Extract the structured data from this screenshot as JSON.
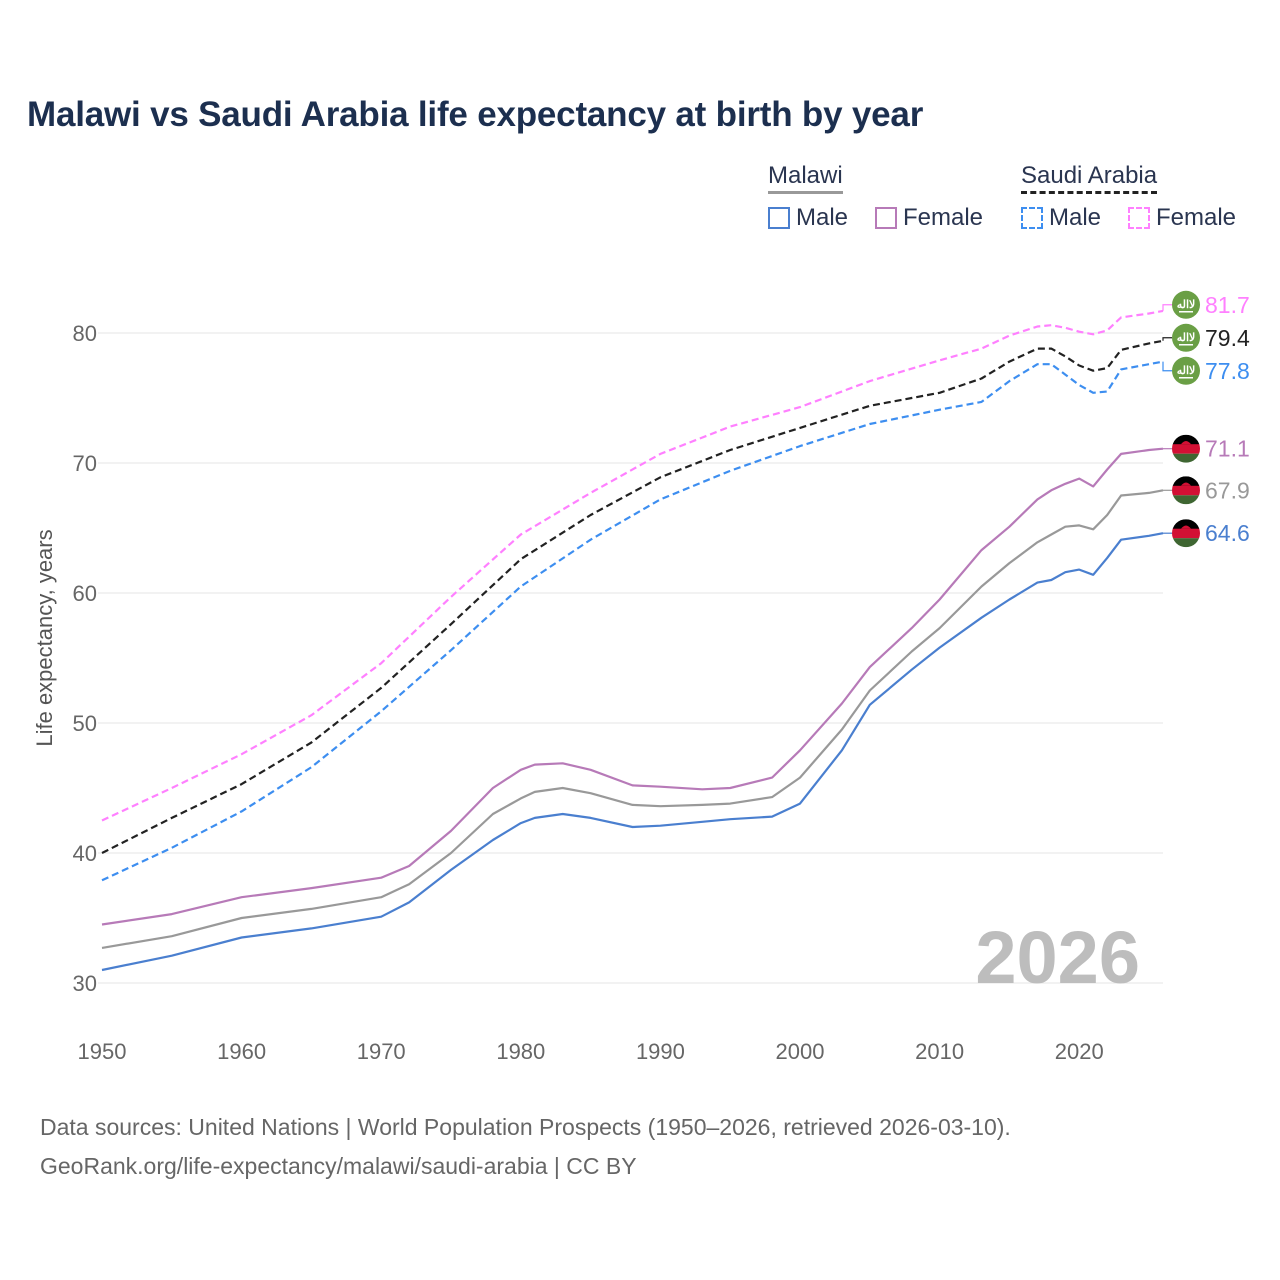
{
  "title": "Malawi vs Saudi Arabia life expectancy at birth by year",
  "legend": {
    "groups": [
      {
        "name": "Malawi",
        "items": [
          "Male",
          "Female"
        ]
      },
      {
        "name": "Saudi Arabia",
        "items": [
          "Male",
          "Female"
        ]
      }
    ]
  },
  "source": {
    "line1": "Data sources: United Nations | World Population Prospects (1950–2026, retrieved 2026-03-10).",
    "line2": "GeoRank.org/life-expectancy/malawi/saudi-arabia | CC BY"
  },
  "chart_data": {
    "type": "line",
    "title": "Malawi vs Saudi Arabia life expectancy at birth by year",
    "xlabel": "",
    "ylabel": "Life expectancy, years",
    "xlim": [
      1950,
      2026
    ],
    "ylim": [
      30,
      83
    ],
    "xticks": [
      1950,
      1960,
      1970,
      1980,
      1990,
      2000,
      2010,
      2020
    ],
    "yticks": [
      30,
      40,
      50,
      60,
      70,
      80
    ],
    "grid": true,
    "year_watermark": "2026",
    "series": [
      {
        "name": "Saudi Arabia Female",
        "country": "Saudi Arabia",
        "color": "#ff80ff",
        "dashed": true,
        "end_label": "81.7",
        "x": [
          1950,
          1955,
          1960,
          1965,
          1970,
          1975,
          1980,
          1985,
          1990,
          1995,
          2000,
          2005,
          2010,
          2013,
          2015,
          2017,
          2018,
          2019,
          2020,
          2021,
          2022,
          2023,
          2025,
          2026
        ],
        "y": [
          42.5,
          45.0,
          47.6,
          50.6,
          54.6,
          59.7,
          64.5,
          67.7,
          70.7,
          72.8,
          74.3,
          76.3,
          77.9,
          78.8,
          79.8,
          80.5,
          80.6,
          80.4,
          80.1,
          79.9,
          80.2,
          81.2,
          81.5,
          81.7
        ]
      },
      {
        "name": "Saudi Arabia",
        "country": "Saudi Arabia",
        "color": "#222222",
        "dashed": true,
        "end_label": "79.4",
        "x": [
          1950,
          1955,
          1960,
          1965,
          1970,
          1975,
          1980,
          1985,
          1990,
          1995,
          2000,
          2005,
          2010,
          2013,
          2015,
          2017,
          2018,
          2019,
          2020,
          2021,
          2022,
          2023,
          2025,
          2026
        ],
        "y": [
          40.0,
          42.7,
          45.3,
          48.5,
          52.7,
          57.6,
          62.6,
          66.0,
          68.9,
          71.0,
          72.7,
          74.4,
          75.4,
          76.5,
          77.8,
          78.8,
          78.8,
          78.2,
          77.5,
          77.1,
          77.3,
          78.7,
          79.2,
          79.4
        ]
      },
      {
        "name": "Saudi Arabia Male",
        "country": "Saudi Arabia",
        "color": "#3d8ef0",
        "dashed": true,
        "end_label": "77.8",
        "x": [
          1950,
          1955,
          1960,
          1965,
          1970,
          1975,
          1980,
          1985,
          1990,
          1995,
          2000,
          2005,
          2010,
          2013,
          2015,
          2017,
          2018,
          2019,
          2020,
          2021,
          2022,
          2023,
          2025,
          2026
        ],
        "y": [
          37.9,
          40.4,
          43.2,
          46.6,
          50.9,
          55.6,
          60.5,
          64.1,
          67.2,
          69.4,
          71.3,
          73.0,
          74.1,
          74.7,
          76.3,
          77.6,
          77.6,
          76.8,
          76.0,
          75.4,
          75.5,
          77.2,
          77.6,
          77.8
        ]
      },
      {
        "name": "Malawi Female",
        "country": "Malawi",
        "color": "#b77ab8",
        "dashed": false,
        "end_label": "71.1",
        "x": [
          1950,
          1955,
          1960,
          1965,
          1970,
          1972,
          1975,
          1978,
          1980,
          1981,
          1983,
          1985,
          1988,
          1990,
          1993,
          1995,
          1998,
          2000,
          2003,
          2005,
          2008,
          2010,
          2013,
          2015,
          2017,
          2018,
          2019,
          2020,
          2021,
          2022,
          2023,
          2025,
          2026
        ],
        "y": [
          34.5,
          35.3,
          36.6,
          37.3,
          38.1,
          39.0,
          41.7,
          45.0,
          46.4,
          46.8,
          46.9,
          46.4,
          45.2,
          45.1,
          44.9,
          45.0,
          45.8,
          47.9,
          51.5,
          54.3,
          57.3,
          59.5,
          63.3,
          65.1,
          67.2,
          67.9,
          68.4,
          68.8,
          68.2,
          69.5,
          70.7,
          71.0,
          71.1
        ]
      },
      {
        "name": "Malawi",
        "country": "Malawi",
        "color": "#999999",
        "dashed": false,
        "end_label": "67.9",
        "x": [
          1950,
          1955,
          1960,
          1965,
          1970,
          1972,
          1975,
          1978,
          1980,
          1981,
          1983,
          1985,
          1988,
          1990,
          1993,
          1995,
          1998,
          2000,
          2003,
          2005,
          2008,
          2010,
          2013,
          2015,
          2017,
          2018,
          2019,
          2020,
          2021,
          2022,
          2023,
          2025,
          2026
        ],
        "y": [
          32.7,
          33.6,
          35.0,
          35.7,
          36.6,
          37.6,
          40.0,
          43.0,
          44.2,
          44.7,
          45.0,
          44.6,
          43.7,
          43.6,
          43.7,
          43.8,
          44.3,
          45.8,
          49.5,
          52.5,
          55.5,
          57.3,
          60.5,
          62.3,
          63.9,
          64.5,
          65.1,
          65.2,
          64.9,
          66.0,
          67.5,
          67.7,
          67.9
        ]
      },
      {
        "name": "Malawi Male",
        "country": "Malawi",
        "color": "#4a7fcf",
        "dashed": false,
        "end_label": "64.6",
        "x": [
          1950,
          1955,
          1960,
          1965,
          1970,
          1972,
          1975,
          1978,
          1980,
          1981,
          1983,
          1985,
          1988,
          1990,
          1993,
          1995,
          1998,
          2000,
          2003,
          2005,
          2008,
          2010,
          2013,
          2015,
          2017,
          2018,
          2019,
          2020,
          2021,
          2022,
          2023,
          2025,
          2026
        ],
        "y": [
          31.0,
          32.1,
          33.5,
          34.2,
          35.1,
          36.2,
          38.7,
          41.0,
          42.3,
          42.7,
          43.0,
          42.7,
          42.0,
          42.1,
          42.4,
          42.6,
          42.8,
          43.8,
          47.9,
          51.4,
          54.1,
          55.8,
          58.1,
          59.5,
          60.8,
          61.0,
          61.6,
          61.8,
          61.4,
          62.7,
          64.1,
          64.4,
          64.6
        ]
      }
    ]
  }
}
